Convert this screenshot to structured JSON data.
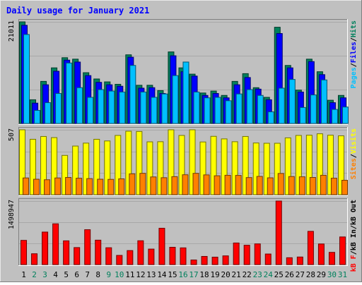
{
  "chart_data": {
    "title": "Daily usage for January 2021",
    "type": "bar",
    "categories": [
      "1",
      "2",
      "3",
      "4",
      "5",
      "6",
      "7",
      "8",
      "9",
      "10",
      "11",
      "12",
      "13",
      "14",
      "15",
      "16",
      "17",
      "18",
      "19",
      "20",
      "21",
      "22",
      "23",
      "24",
      "25",
      "26",
      "27",
      "28",
      "29",
      "30",
      "31"
    ],
    "weekend_days": [
      "2",
      "3",
      "9",
      "10",
      "16",
      "17",
      "23",
      "24",
      "30",
      "31"
    ],
    "panels": [
      {
        "id": "hits-files-pages",
        "max_label": "21011",
        "ylim": [
          0,
          21011
        ],
        "legend": [
          "Pages",
          "/",
          "Files",
          "/",
          "Hits"
        ],
        "series": [
          {
            "name": "Hits",
            "color": "#00805c",
            "values": [
              21011,
              4900,
              8700,
              11500,
              13600,
              13300,
              10500,
              9200,
              8600,
              8100,
              14200,
              7900,
              7900,
              6800,
              14800,
              11500,
              10200,
              6300,
              6700,
              5800,
              8700,
              10300,
              7400,
              5400,
              19900,
              12000,
              6900,
              13300,
              10700,
              4800,
              5800
            ]
          },
          {
            "name": "Files",
            "color": "#0000ff",
            "values": [
              20300,
              4200,
              8000,
              10800,
              13100,
              12700,
              9900,
              8500,
              8000,
              7700,
              13700,
              7300,
              7400,
              6200,
              14000,
              10700,
              9800,
              5800,
              6200,
              5300,
              8000,
              9500,
              7100,
              4900,
              18600,
              11500,
              6500,
              12800,
              10100,
              4300,
              5300
            ]
          },
          {
            "name": "Pages",
            "color": "#00c0ff",
            "values": [
              18400,
              2700,
              4300,
              6200,
              12500,
              7400,
              5400,
              7000,
              6700,
              6500,
              12000,
              6500,
              5400,
              6100,
              9900,
              12700,
              6500,
              5300,
              5400,
              4700,
              6100,
              7000,
              5800,
              2400,
              7300,
              9100,
              3300,
              5900,
              9000,
              2900,
              3400
            ]
          }
        ]
      },
      {
        "id": "visits-sites",
        "max_label": "507",
        "ylim": [
          0,
          507
        ],
        "legend": [
          "Sites",
          "/",
          "Visits"
        ],
        "series": [
          {
            "name": "Visits",
            "color": "#ffff00",
            "values": [
              507,
              433,
              455,
              446,
              307,
              380,
              403,
              433,
              420,
              463,
              496,
              494,
              413,
              414,
              507,
              463,
              507,
              412,
              456,
              436,
              414,
              455,
              404,
              402,
              402,
              444,
              463,
              465,
              476,
              465,
              460
            ]
          },
          {
            "name": "Sites",
            "color": "#ff8000",
            "values": [
              131,
              121,
              117,
              131,
              135,
              129,
              126,
              121,
              120,
              124,
              163,
              167,
              139,
              133,
              141,
              156,
              167,
              155,
              148,
              152,
              151,
              134,
              143,
              132,
              166,
              142,
              140,
              135,
              152,
              129,
              113
            ]
          }
        ]
      },
      {
        "id": "kb",
        "max_label": "1498947",
        "ylim": [
          0,
          1498947
        ],
        "legend": [
          "kB F",
          "/",
          "kB In",
          "/",
          "kB Out"
        ],
        "series": [
          {
            "name": "kB F",
            "color": "#ff0000",
            "values": [
              571000,
              255000,
              767000,
              962000,
              560000,
              401000,
              823000,
              576000,
              397000,
              216000,
              330000,
              562000,
              365000,
              857000,
              408000,
              394000,
              108000,
              192000,
              175000,
              205000,
              509000,
              456000,
              488000,
              249000,
              1498947,
              161000,
              178000,
              784000,
              486000,
              288000,
              652000
            ]
          }
        ]
      }
    ]
  }
}
